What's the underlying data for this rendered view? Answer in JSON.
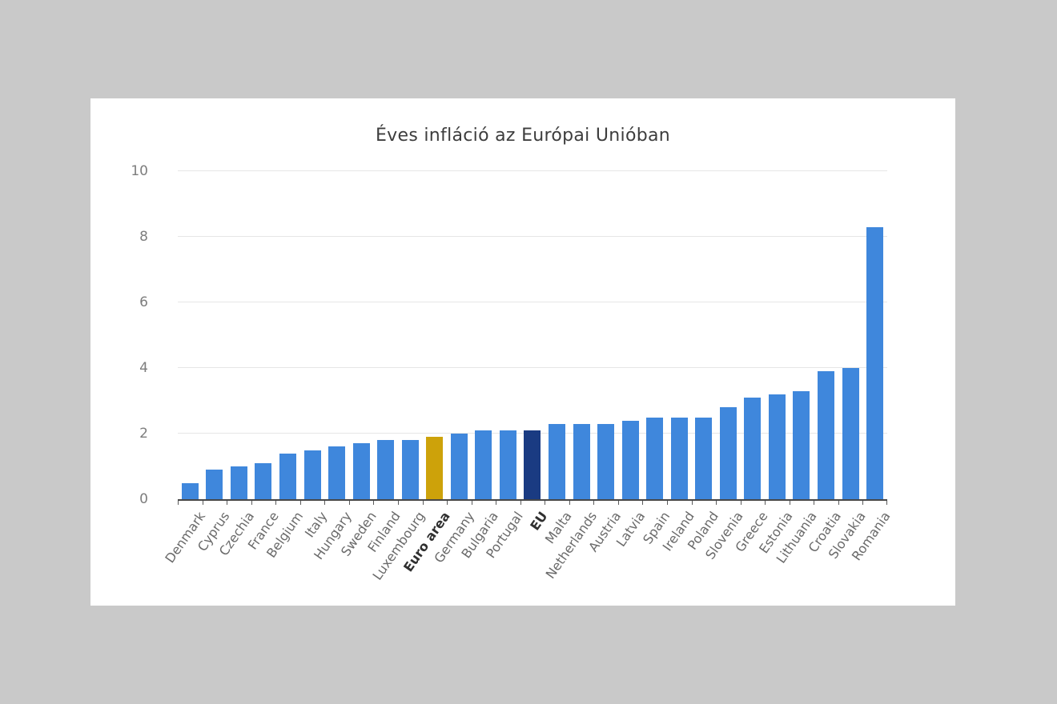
{
  "chart_data": {
    "type": "bar",
    "title": "Éves infláció az Európai Unióban",
    "xlabel": "",
    "ylabel": "",
    "ylim": [
      0,
      10
    ],
    "yticks": [
      0,
      2,
      4,
      6,
      8,
      10
    ],
    "grid": "horizontal",
    "legend": "none",
    "colors": {
      "member": "#3f87dc",
      "euro_area": "#cda20a",
      "eu": "#1a3b82"
    },
    "background_color": "#c9c9c9",
    "card_color": "#ffffff",
    "bars": [
      {
        "label": "Denmark",
        "value": 0.5,
        "type": "member"
      },
      {
        "label": "Cyprus",
        "value": 0.9,
        "type": "member"
      },
      {
        "label": "Czechia",
        "value": 1.0,
        "type": "member"
      },
      {
        "label": "France",
        "value": 1.1,
        "type": "member"
      },
      {
        "label": "Belgium",
        "value": 1.4,
        "type": "member"
      },
      {
        "label": "Italy",
        "value": 1.5,
        "type": "member"
      },
      {
        "label": "Hungary",
        "value": 1.6,
        "type": "member"
      },
      {
        "label": "Sweden",
        "value": 1.7,
        "type": "member"
      },
      {
        "label": "Finland",
        "value": 1.8,
        "type": "member"
      },
      {
        "label": "Luxembourg",
        "value": 1.8,
        "type": "member"
      },
      {
        "label": "Euro area",
        "value": 1.9,
        "type": "euro_area"
      },
      {
        "label": "Germany",
        "value": 2.0,
        "type": "member"
      },
      {
        "label": "Bulgaria",
        "value": 2.1,
        "type": "member"
      },
      {
        "label": "Portugal",
        "value": 2.1,
        "type": "member"
      },
      {
        "label": "EU",
        "value": 2.1,
        "type": "eu"
      },
      {
        "label": "Malta",
        "value": 2.3,
        "type": "member"
      },
      {
        "label": "Netherlands",
        "value": 2.3,
        "type": "member"
      },
      {
        "label": "Austria",
        "value": 2.3,
        "type": "member"
      },
      {
        "label": "Latvia",
        "value": 2.4,
        "type": "member"
      },
      {
        "label": "Spain",
        "value": 2.5,
        "type": "member"
      },
      {
        "label": "Ireland",
        "value": 2.5,
        "type": "member"
      },
      {
        "label": "Poland",
        "value": 2.5,
        "type": "member"
      },
      {
        "label": "Slovenia",
        "value": 2.8,
        "type": "member"
      },
      {
        "label": "Greece",
        "value": 3.1,
        "type": "member"
      },
      {
        "label": "Estonia",
        "value": 3.2,
        "type": "member"
      },
      {
        "label": "Lithuania",
        "value": 3.3,
        "type": "member"
      },
      {
        "label": "Croatia",
        "value": 3.9,
        "type": "member"
      },
      {
        "label": "Slovakia",
        "value": 4.0,
        "type": "member"
      },
      {
        "label": "Romania",
        "value": 8.3,
        "type": "member"
      }
    ]
  }
}
